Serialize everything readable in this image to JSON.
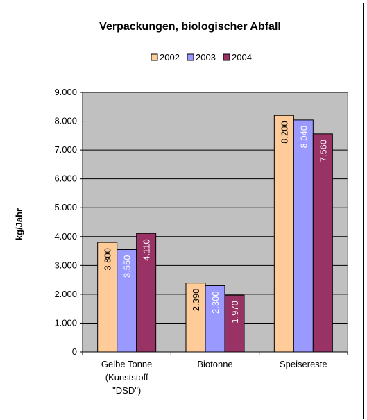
{
  "chart_data": {
    "type": "bar",
    "title": "Verpackungen, biologischer Abfall",
    "ylabel": "kg/Jahr",
    "xlabel": "",
    "categories": [
      [
        "Gelbe Tonne",
        "(Kunststoff",
        "\"DSD\")"
      ],
      [
        "Biotonne"
      ],
      [
        "Speisereste"
      ]
    ],
    "series": [
      {
        "name": "2002",
        "values": [
          3800,
          2390,
          8200
        ],
        "labels": [
          "3.800",
          "2.390",
          "8.200"
        ],
        "color": "#FFCC99",
        "label_color": "#000000"
      },
      {
        "name": "2003",
        "values": [
          3550,
          2300,
          8040
        ],
        "labels": [
          "3.550",
          "2.300",
          "8.040"
        ],
        "color": "#9999FF",
        "label_color": "#ffffff"
      },
      {
        "name": "2004",
        "values": [
          4110,
          1970,
          7560
        ],
        "labels": [
          "4.110",
          "1.970",
          "7.560"
        ],
        "color": "#993366",
        "label_color": "#ffffff"
      }
    ],
    "ylim": [
      0,
      9000
    ],
    "yticks": [
      0,
      1000,
      2000,
      3000,
      4000,
      5000,
      6000,
      7000,
      8000,
      9000
    ],
    "ytick_labels": [
      "0",
      "1.000",
      "2.000",
      "3.000",
      "4.000",
      "5.000",
      "6.000",
      "7.000",
      "8.000",
      "9.000"
    ],
    "legend_position": "top",
    "grid": true,
    "plot_background": "#C0C0C0"
  }
}
